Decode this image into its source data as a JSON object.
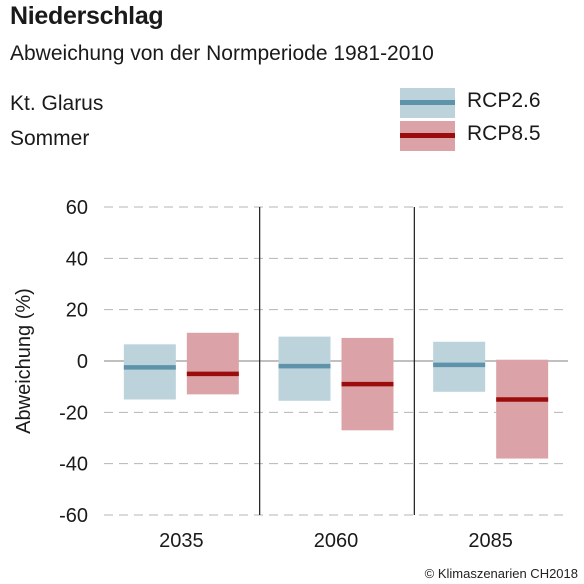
{
  "header": {
    "title": "Niederschlag",
    "subtitle": "Abweichung von der Normperiode 1981-2010",
    "region": "Kt. Glarus",
    "season": "Sommer"
  },
  "legend": [
    {
      "label": "RCP2.6",
      "fill": "#bcd3dc",
      "line": "#5e93aa"
    },
    {
      "label": "RCP8.5",
      "fill": "#dba3a7",
      "line": "#9b0d0d"
    }
  ],
  "credit": "© Klimaszenarien CH2018",
  "chart_data": {
    "type": "bar",
    "title": "Niederschlag",
    "ylabel": "Abweichung (%)",
    "xlabel": "",
    "ylim": [
      -60,
      60
    ],
    "yticks": [
      60,
      40,
      20,
      0,
      -20,
      -40,
      -60
    ],
    "grid": true,
    "legend_position": "top-right",
    "categories": [
      "2035",
      "2060",
      "2085"
    ],
    "series": [
      {
        "name": "RCP2.6",
        "low": [
          -15,
          -15.5,
          -12
        ],
        "median": [
          -2.5,
          -2,
          -1.5
        ],
        "high": [
          6.5,
          9.5,
          7.5
        ]
      },
      {
        "name": "RCP8.5",
        "low": [
          -13,
          -27,
          -38
        ],
        "median": [
          -5,
          -9,
          -15
        ],
        "high": [
          11,
          9,
          0.5
        ]
      }
    ]
  }
}
